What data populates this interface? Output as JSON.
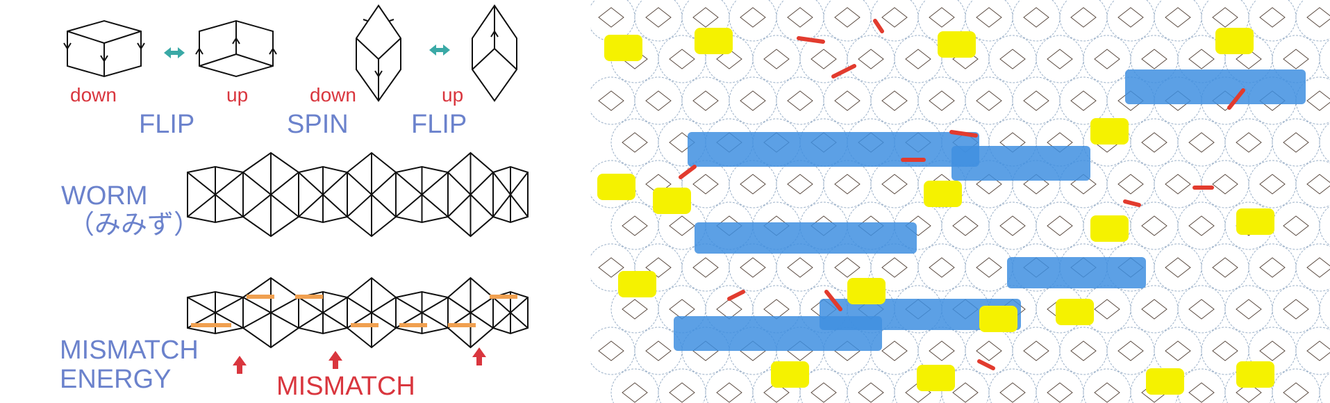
{
  "labels": {
    "down_1": "down",
    "up_1": "up",
    "down_2": "down",
    "up_2": "up",
    "flip_1": "FLIP",
    "spin": "SPIN",
    "flip_2": "FLIP",
    "worm": "WORM",
    "worm_jp": "（みみず）",
    "mismatch_energy_line1": "MISMATCH",
    "mismatch_energy_line2": "ENERGY",
    "mismatch": "MISMATCH"
  },
  "colors": {
    "red_text": "#d9363e",
    "blue_text": "#6b82cc",
    "teal_arrow": "#3aa9a6",
    "pattern_blue": "#3f8fe0",
    "pattern_yellow": "#f5f200",
    "pattern_red": "#e23b2e",
    "orange_bar": "#f0a050"
  },
  "icons": {
    "flip_arrow": "double-headed-arrow-icon",
    "mismatch_marker": "up-arrow-icon"
  }
}
